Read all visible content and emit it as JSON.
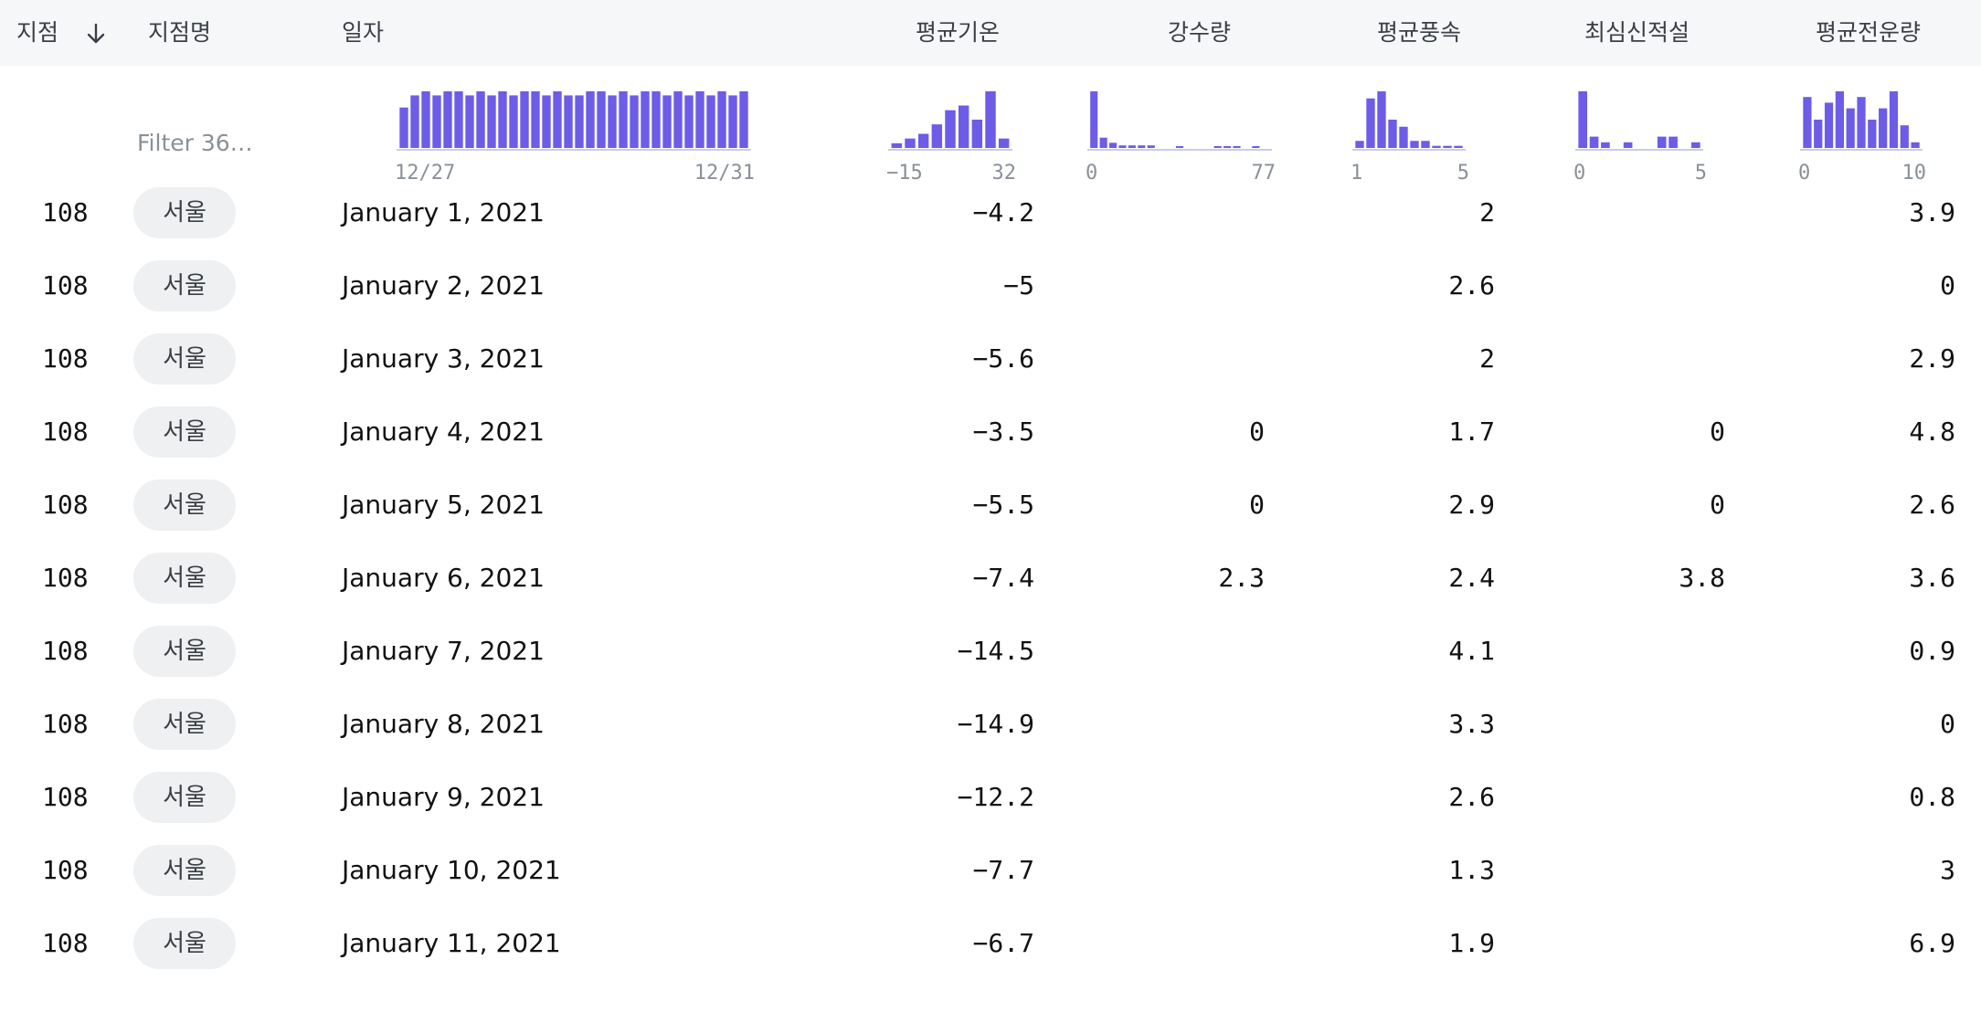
{
  "table": {
    "columns": [
      {
        "key": "station",
        "label": "지점"
      },
      {
        "key": "station_name",
        "label": "지점명"
      },
      {
        "key": "date",
        "label": "일자"
      },
      {
        "key": "avg_temp",
        "label": "평균기온"
      },
      {
        "key": "precip",
        "label": "강수량"
      },
      {
        "key": "avg_wind",
        "label": "평균풍속"
      },
      {
        "key": "snow",
        "label": "최심신적설"
      },
      {
        "key": "cloud",
        "label": "평균전운량"
      }
    ],
    "sort": {
      "column": "station",
      "direction": "descending"
    },
    "filter_placeholder": "Filter 36…",
    "rows": [
      {
        "station": "108",
        "station_name": "서울",
        "date": "January 1, 2021",
        "avg_temp": "−4.2",
        "precip": "",
        "avg_wind": "2",
        "snow": "",
        "cloud": "3.9"
      },
      {
        "station": "108",
        "station_name": "서울",
        "date": "January 2, 2021",
        "avg_temp": "−5",
        "precip": "",
        "avg_wind": "2.6",
        "snow": "",
        "cloud": "0"
      },
      {
        "station": "108",
        "station_name": "서울",
        "date": "January 3, 2021",
        "avg_temp": "−5.6",
        "precip": "",
        "avg_wind": "2",
        "snow": "",
        "cloud": "2.9"
      },
      {
        "station": "108",
        "station_name": "서울",
        "date": "January 4, 2021",
        "avg_temp": "−3.5",
        "precip": "0",
        "avg_wind": "1.7",
        "snow": "0",
        "cloud": "4.8"
      },
      {
        "station": "108",
        "station_name": "서울",
        "date": "January 5, 2021",
        "avg_temp": "−5.5",
        "precip": "0",
        "avg_wind": "2.9",
        "snow": "0",
        "cloud": "2.6"
      },
      {
        "station": "108",
        "station_name": "서울",
        "date": "January 6, 2021",
        "avg_temp": "−7.4",
        "precip": "2.3",
        "avg_wind": "2.4",
        "snow": "3.8",
        "cloud": "3.6"
      },
      {
        "station": "108",
        "station_name": "서울",
        "date": "January 7, 2021",
        "avg_temp": "−14.5",
        "precip": "",
        "avg_wind": "4.1",
        "snow": "",
        "cloud": "0.9"
      },
      {
        "station": "108",
        "station_name": "서울",
        "date": "January 8, 2021",
        "avg_temp": "−14.9",
        "precip": "",
        "avg_wind": "3.3",
        "snow": "",
        "cloud": "0"
      },
      {
        "station": "108",
        "station_name": "서울",
        "date": "January 9, 2021",
        "avg_temp": "−12.2",
        "precip": "",
        "avg_wind": "2.6",
        "snow": "",
        "cloud": "0.8"
      },
      {
        "station": "108",
        "station_name": "서울",
        "date": "January 10, 2021",
        "avg_temp": "−7.7",
        "precip": "",
        "avg_wind": "1.3",
        "snow": "",
        "cloud": "3"
      },
      {
        "station": "108",
        "station_name": "서울",
        "date": "January 11, 2021",
        "avg_temp": "−6.7",
        "precip": "",
        "avg_wind": "1.9",
        "snow": "",
        "cloud": "6.9"
      }
    ]
  },
  "chart_data": [
    {
      "type": "bar",
      "column": "일자",
      "x_min_label": "12/27",
      "x_max_label": "12/31",
      "values": [
        10,
        13,
        14,
        13,
        14,
        14,
        13,
        14,
        13,
        14,
        13,
        14,
        14,
        13,
        14,
        13,
        13,
        14,
        14,
        13,
        14,
        13,
        14,
        14,
        13,
        14,
        13,
        14,
        13,
        14,
        13,
        14
      ]
    },
    {
      "type": "bar",
      "column": "평균기온",
      "x_min_label": "−15",
      "x_max_label": "32",
      "values": [
        1,
        2,
        3,
        5,
        8,
        9,
        6,
        12,
        2
      ]
    },
    {
      "type": "bar",
      "column": "강수량",
      "x_min_label": "0",
      "x_max_label": "77",
      "values": [
        22,
        4,
        2,
        1,
        1,
        1,
        1,
        0,
        0,
        0.5,
        0,
        0,
        0,
        0.5,
        0.5,
        0.5,
        0,
        0.5,
        0
      ]
    },
    {
      "type": "bar",
      "column": "평균풍속",
      "x_min_label": "1",
      "x_max_label": "5",
      "values": [
        1,
        7,
        8,
        4,
        3,
        1,
        1,
        0.3,
        0.3,
        0.3
      ]
    },
    {
      "type": "bar",
      "column": "최심신적설",
      "x_min_label": "0",
      "x_max_label": "5",
      "values": [
        10,
        2,
        1,
        0,
        1,
        0,
        0,
        2,
        2,
        0,
        1
      ]
    },
    {
      "type": "bar",
      "column": "평균전운량",
      "x_min_label": "0",
      "x_max_label": "10",
      "values": [
        9,
        5,
        8,
        10,
        7,
        9,
        5,
        7,
        10,
        4,
        1
      ]
    }
  ],
  "colors": {
    "bar": "#6c5ce7",
    "axis": "#c9cbee",
    "muted": "#8a9098"
  },
  "icons": {
    "sort": "arrow-down-icon"
  }
}
